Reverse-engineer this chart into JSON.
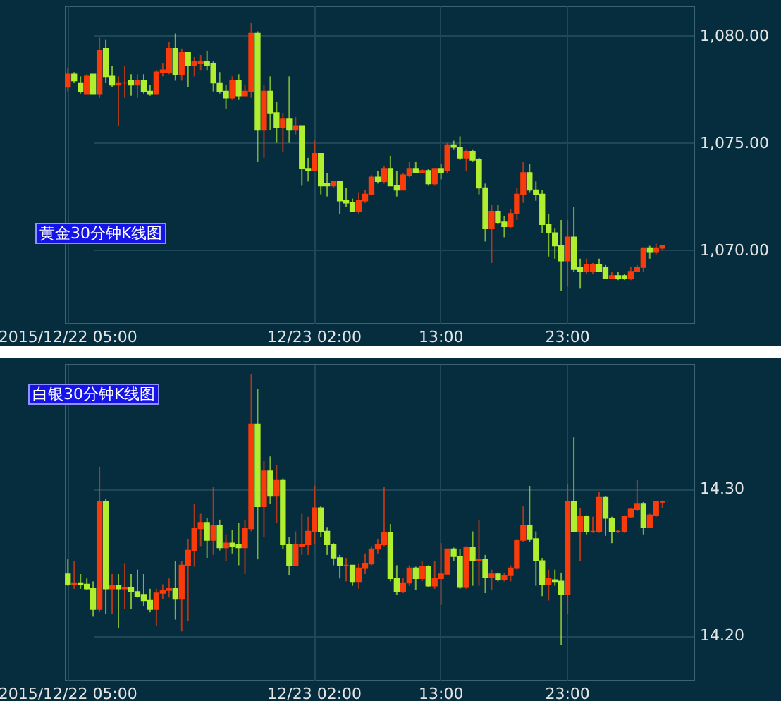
{
  "chart_data": [
    {
      "type": "candlestick",
      "title": "黄金30分钟K线图",
      "categories": [
        "2015/12/22 05:00",
        null,
        null,
        null,
        null,
        null,
        null,
        null,
        null,
        null,
        null,
        null,
        null,
        null,
        null,
        null,
        null,
        null,
        null,
        null,
        null,
        null,
        null,
        null,
        null,
        null,
        null,
        null,
        null,
        null,
        null,
        null,
        null,
        null,
        null,
        null,
        null,
        null,
        null,
        "12/23 02:00",
        null,
        null,
        null,
        null,
        null,
        null,
        null,
        null,
        null,
        null,
        null,
        null,
        null,
        null,
        null,
        null,
        null,
        null,
        null,
        "13:00",
        null,
        null,
        null,
        null,
        null,
        null,
        null,
        null,
        null,
        null,
        null,
        null,
        null,
        null,
        null,
        null,
        null,
        null,
        null,
        "23:00",
        null,
        null,
        null,
        null,
        null,
        null,
        null,
        null,
        null,
        null,
        null,
        null,
        null,
        null,
        null
      ],
      "ohlc": [
        [
          1077.6,
          1078.5,
          1077.4,
          1078.2
        ],
        [
          1078.2,
          1078.3,
          1077.8,
          1077.9
        ],
        [
          1077.8,
          1078.1,
          1077.3,
          1077.4
        ],
        [
          1077.3,
          1078.2,
          1077.3,
          1078.1
        ],
        [
          1078.2,
          1078.2,
          1077.3,
          1077.3
        ],
        [
          1077.3,
          1079.9,
          1077.1,
          1079.3
        ],
        [
          1079.4,
          1079.8,
          1077.8,
          1078.1
        ],
        [
          1078.1,
          1078.6,
          1077.6,
          1077.7
        ],
        [
          1077.7,
          1078.1,
          1075.8,
          1077.8
        ],
        [
          1077.8,
          1078.6,
          1077.1,
          1077.8
        ],
        [
          1077.9,
          1078.2,
          1077.2,
          1077.7
        ],
        [
          1077.7,
          1078.2,
          1077.1,
          1077.9
        ],
        [
          1077.9,
          1078.2,
          1077.3,
          1077.4
        ],
        [
          1077.4,
          1077.7,
          1077.2,
          1077.3
        ],
        [
          1077.3,
          1078.4,
          1077.3,
          1078.3
        ],
        [
          1078.3,
          1078.7,
          1078.1,
          1078.4
        ],
        [
          1078.3,
          1079.7,
          1078.2,
          1079.4
        ],
        [
          1079.4,
          1080.1,
          1077.9,
          1078.2
        ],
        [
          1078.2,
          1079.4,
          1077.9,
          1079.2
        ],
        [
          1079.2,
          1079.2,
          1077.6,
          1078.6
        ],
        [
          1078.6,
          1079.0,
          1078.1,
          1078.8
        ],
        [
          1078.7,
          1079.1,
          1078.4,
          1078.8
        ],
        [
          1078.8,
          1079.3,
          1078.4,
          1078.6
        ],
        [
          1078.7,
          1078.8,
          1077.4,
          1077.8
        ],
        [
          1077.8,
          1078.3,
          1077.3,
          1077.4
        ],
        [
          1077.4,
          1077.7,
          1076.6,
          1077.1
        ],
        [
          1077.1,
          1078.1,
          1077.0,
          1077.9
        ],
        [
          1077.9,
          1078.2,
          1077.0,
          1077.2
        ],
        [
          1077.2,
          1077.7,
          1077.2,
          1077.4
        ],
        [
          1077.4,
          1080.6,
          1077.1,
          1080.1
        ],
        [
          1080.1,
          1080.2,
          1074.1,
          1075.6
        ],
        [
          1075.6,
          1077.7,
          1074.3,
          1077.4
        ],
        [
          1077.4,
          1078.1,
          1075.6,
          1076.4
        ],
        [
          1076.4,
          1076.9,
          1075.0,
          1075.7
        ],
        [
          1075.7,
          1076.4,
          1074.6,
          1076.1
        ],
        [
          1076.1,
          1078.1,
          1075.0,
          1075.6
        ],
        [
          1075.6,
          1076.2,
          1075.4,
          1075.8
        ],
        [
          1075.8,
          1075.8,
          1073.0,
          1073.8
        ],
        [
          1073.8,
          1074.3,
          1073.2,
          1073.7
        ],
        [
          1073.7,
          1075.1,
          1073.7,
          1074.5
        ],
        [
          1074.5,
          1074.5,
          1072.6,
          1073.0
        ],
        [
          1073.1,
          1073.6,
          1072.5,
          1073.0
        ],
        [
          1073.0,
          1073.2,
          1072.9,
          1073.2
        ],
        [
          1073.2,
          1073.2,
          1071.7,
          1072.3
        ],
        [
          1072.3,
          1072.9,
          1072.0,
          1072.2
        ],
        [
          1072.2,
          1072.4,
          1071.8,
          1071.8
        ],
        [
          1071.8,
          1072.7,
          1071.7,
          1072.3
        ],
        [
          1072.3,
          1072.8,
          1072.2,
          1072.6
        ],
        [
          1072.6,
          1073.5,
          1072.6,
          1073.4
        ],
        [
          1073.4,
          1073.7,
          1073.1,
          1073.2
        ],
        [
          1073.2,
          1073.9,
          1073.1,
          1073.8
        ],
        [
          1073.8,
          1074.4,
          1073.0,
          1073.0
        ],
        [
          1073.0,
          1073.7,
          1072.5,
          1072.8
        ],
        [
          1072.8,
          1073.6,
          1072.8,
          1073.5
        ],
        [
          1073.5,
          1074.1,
          1073.4,
          1073.8
        ],
        [
          1073.8,
          1074.1,
          1073.6,
          1073.6
        ],
        [
          1073.6,
          1073.8,
          1073.6,
          1073.7
        ],
        [
          1073.7,
          1073.8,
          1073.0,
          1073.1
        ],
        [
          1073.1,
          1073.8,
          1073.0,
          1073.8
        ],
        [
          1073.8,
          1074.0,
          1073.3,
          1073.6
        ],
        [
          1073.7,
          1075.0,
          1073.6,
          1074.9
        ],
        [
          1074.9,
          1075.1,
          1074.7,
          1074.8
        ],
        [
          1074.8,
          1075.3,
          1074.2,
          1074.3
        ],
        [
          1074.3,
          1074.7,
          1073.7,
          1074.6
        ],
        [
          1074.6,
          1074.7,
          1074.1,
          1074.2
        ],
        [
          1074.2,
          1074.3,
          1072.6,
          1072.9
        ],
        [
          1072.9,
          1073.1,
          1070.4,
          1071.0
        ],
        [
          1071.0,
          1072.1,
          1069.4,
          1071.8
        ],
        [
          1071.8,
          1072.1,
          1071.2,
          1071.3
        ],
        [
          1071.3,
          1071.6,
          1070.6,
          1071.1
        ],
        [
          1071.1,
          1071.9,
          1071.0,
          1071.7
        ],
        [
          1071.7,
          1072.9,
          1071.4,
          1072.6
        ],
        [
          1072.6,
          1074.1,
          1072.2,
          1073.6
        ],
        [
          1073.6,
          1074.0,
          1072.7,
          1072.8
        ],
        [
          1072.8,
          1073.2,
          1072.3,
          1072.6
        ],
        [
          1072.6,
          1072.8,
          1070.8,
          1071.2
        ],
        [
          1071.2,
          1071.7,
          1069.7,
          1070.8
        ],
        [
          1070.8,
          1071.0,
          1069.6,
          1070.2
        ],
        [
          1070.2,
          1071.4,
          1068.1,
          1069.5
        ],
        [
          1069.5,
          1071.4,
          1068.3,
          1070.6
        ],
        [
          1070.6,
          1072.0,
          1069.0,
          1069.1
        ],
        [
          1069.2,
          1069.6,
          1068.2,
          1069.0
        ],
        [
          1069.0,
          1069.6,
          1068.9,
          1069.3
        ],
        [
          1069.0,
          1069.4,
          1068.9,
          1069.3
        ],
        [
          1069.3,
          1069.6,
          1069.0,
          1069.0
        ],
        [
          1069.2,
          1069.3,
          1068.7,
          1068.7
        ],
        [
          1068.7,
          1069.0,
          1068.7,
          1068.8
        ],
        [
          1068.8,
          1069.0,
          1068.6,
          1068.7
        ],
        [
          1068.8,
          1068.9,
          1068.6,
          1068.7
        ],
        [
          1068.7,
          1069.2,
          1068.6,
          1069.0
        ],
        [
          1069.0,
          1069.3,
          1069.0,
          1069.2
        ],
        [
          1069.2,
          1070.1,
          1069.0,
          1070.1
        ],
        [
          1070.1,
          1070.2,
          1069.6,
          1069.9
        ],
        [
          1069.9,
          1070.3,
          1069.8,
          1070.1
        ],
        [
          1070.1,
          1070.2,
          1070.0,
          1070.2
        ]
      ],
      "colors": [
        "#f83c0c",
        "#b0ee30",
        "#b0ee30",
        "#f83c0c",
        "#b0ee30",
        "#f83c0c",
        "#b0ee30",
        "#b0ee30",
        "#f83c0c",
        "#f83c0c",
        "#b0ee30",
        "#f83c0c",
        "#b0ee30",
        "#b0ee30",
        "#f83c0c",
        "#f83c0c",
        "#f83c0c",
        "#b0ee30",
        "#f83c0c",
        "#b0ee30",
        "#f83c0c",
        "#f83c0c",
        "#b0ee30",
        "#b0ee30",
        "#b0ee30",
        "#b0ee30",
        "#f83c0c",
        "#b0ee30",
        "#f83c0c",
        "#f83c0c",
        "#b0ee30",
        "#f83c0c",
        "#b0ee30",
        "#b0ee30",
        "#f83c0c",
        "#b0ee30",
        "#f83c0c",
        "#b0ee30",
        "#b0ee30",
        "#f83c0c",
        "#b0ee30",
        "#b0ee30",
        "#f83c0c",
        "#b0ee30",
        "#b0ee30",
        "#b0ee30",
        "#f83c0c",
        "#f83c0c",
        "#f83c0c",
        "#b0ee30",
        "#f83c0c",
        "#b0ee30",
        "#b0ee30",
        "#f83c0c",
        "#f83c0c",
        "#b0ee30",
        "#f83c0c",
        "#b0ee30",
        "#f83c0c",
        "#b0ee30",
        "#f83c0c",
        "#b0ee30",
        "#b0ee30",
        "#f83c0c",
        "#b0ee30",
        "#b0ee30",
        "#b0ee30",
        "#f83c0c",
        "#b0ee30",
        "#b0ee30",
        "#f83c0c",
        "#f83c0c",
        "#f83c0c",
        "#b0ee30",
        "#b0ee30",
        "#b0ee30",
        "#b0ee30",
        "#b0ee30",
        "#b0ee30",
        "#f83c0c",
        "#b0ee30",
        "#b0ee30",
        "#f83c0c",
        "#f83c0c",
        "#b0ee30",
        "#b0ee30",
        "#f83c0c",
        "#b0ee30",
        "#b0ee30",
        "#f83c0c",
        "#f83c0c",
        "#f83c0c",
        "#b0ee30",
        "#f83c0c",
        "#f83c0c"
      ],
      "ylim": [
        1066.6,
        1081.4
      ],
      "yticks": [
        {
          "value": 1070,
          "label": "1,070.00"
        },
        {
          "value": 1075,
          "label": "1,075.00"
        },
        {
          "value": 1080,
          "label": "1,080.00"
        }
      ],
      "grid": true
    },
    {
      "type": "candlestick",
      "title": "白银30分钟K线图",
      "categories": [
        "2015/12/22 05:00",
        null,
        null,
        null,
        null,
        null,
        null,
        null,
        null,
        null,
        null,
        null,
        null,
        null,
        null,
        null,
        null,
        null,
        null,
        null,
        null,
        null,
        null,
        null,
        null,
        null,
        null,
        null,
        null,
        null,
        null,
        null,
        null,
        null,
        null,
        null,
        null,
        null,
        null,
        "12/23 02:00",
        null,
        null,
        null,
        null,
        null,
        null,
        null,
        null,
        null,
        null,
        null,
        null,
        null,
        null,
        null,
        null,
        null,
        null,
        null,
        "13:00",
        null,
        null,
        null,
        null,
        null,
        null,
        null,
        null,
        null,
        null,
        null,
        null,
        null,
        null,
        null,
        null,
        null,
        null,
        null,
        "23:00",
        null,
        null,
        null,
        null,
        null,
        null,
        null,
        null,
        null,
        null,
        null,
        null,
        null,
        null,
        null
      ],
      "ohlc": [
        [
          14.242,
          14.252,
          14.234,
          14.235
        ],
        [
          14.235,
          14.251,
          14.232,
          14.236
        ],
        [
          14.236,
          14.242,
          14.232,
          14.235
        ],
        [
          14.235,
          14.239,
          14.231,
          14.232
        ],
        [
          14.232,
          14.237,
          14.213,
          14.218
        ],
        [
          14.218,
          14.315,
          14.216,
          14.291
        ],
        [
          14.291,
          14.293,
          14.215,
          14.232
        ],
        [
          14.232,
          14.242,
          14.215,
          14.234
        ],
        [
          14.234,
          14.242,
          14.205,
          14.232
        ],
        [
          14.232,
          14.249,
          14.218,
          14.233
        ],
        [
          14.233,
          14.242,
          14.218,
          14.23
        ],
        [
          14.23,
          14.245,
          14.226,
          14.227
        ],
        [
          14.228,
          14.242,
          14.22,
          14.224
        ],
        [
          14.224,
          14.232,
          14.216,
          14.218
        ],
        [
          14.218,
          14.232,
          14.207,
          14.229
        ],
        [
          14.229,
          14.235,
          14.225,
          14.231
        ],
        [
          14.231,
          14.239,
          14.226,
          14.232
        ],
        [
          14.232,
          14.251,
          14.211,
          14.225
        ],
        [
          14.225,
          14.251,
          14.203,
          14.248
        ],
        [
          14.248,
          14.266,
          14.21,
          14.258
        ],
        [
          14.258,
          14.29,
          14.247,
          14.273
        ],
        [
          14.273,
          14.283,
          14.261,
          14.277
        ],
        [
          14.277,
          14.28,
          14.253,
          14.265
        ],
        [
          14.265,
          14.301,
          14.255,
          14.275
        ],
        [
          14.275,
          14.279,
          14.258,
          14.26
        ],
        [
          14.26,
          14.269,
          14.251,
          14.263
        ],
        [
          14.263,
          14.272,
          14.256,
          14.261
        ],
        [
          14.262,
          14.277,
          14.248,
          14.26
        ],
        [
          14.26,
          14.279,
          14.242,
          14.273
        ],
        [
          14.273,
          14.378,
          14.271,
          14.344
        ],
        [
          14.344,
          14.368,
          14.252,
          14.288
        ],
        [
          14.288,
          14.319,
          14.267,
          14.312
        ],
        [
          14.312,
          14.322,
          14.29,
          14.295
        ],
        [
          14.295,
          14.316,
          14.277,
          14.306
        ],
        [
          14.306,
          14.307,
          14.259,
          14.262
        ],
        [
          14.262,
          14.267,
          14.241,
          14.248
        ],
        [
          14.248,
          14.271,
          14.248,
          14.262
        ],
        [
          14.261,
          14.283,
          14.255,
          14.262
        ],
        [
          14.262,
          14.281,
          14.255,
          14.271
        ],
        [
          14.271,
          14.302,
          14.262,
          14.287
        ],
        [
          14.287,
          14.288,
          14.267,
          14.271
        ],
        [
          14.271,
          14.274,
          14.255,
          14.262
        ],
        [
          14.262,
          14.263,
          14.248,
          14.253
        ],
        [
          14.253,
          14.255,
          14.239,
          14.248
        ],
        [
          14.248,
          14.253,
          14.237,
          14.248
        ],
        [
          14.248,
          14.248,
          14.234,
          14.237
        ],
        [
          14.237,
          14.249,
          14.232,
          14.246
        ],
        [
          14.246,
          14.256,
          14.242,
          14.249
        ],
        [
          14.249,
          14.261,
          14.248,
          14.259
        ],
        [
          14.259,
          14.266,
          14.256,
          14.262
        ],
        [
          14.262,
          14.301,
          14.261,
          14.27
        ],
        [
          14.27,
          14.276,
          14.237,
          14.239
        ],
        [
          14.239,
          14.248,
          14.228,
          14.23
        ],
        [
          14.23,
          14.239,
          14.229,
          14.236
        ],
        [
          14.236,
          14.248,
          14.234,
          14.246
        ],
        [
          14.246,
          14.247,
          14.231,
          14.239
        ],
        [
          14.239,
          14.251,
          14.237,
          14.247
        ],
        [
          14.247,
          14.248,
          14.233,
          14.234
        ],
        [
          14.234,
          14.251,
          14.232,
          14.239
        ],
        [
          14.239,
          14.263,
          14.221,
          14.242
        ],
        [
          14.242,
          14.259,
          14.242,
          14.259
        ],
        [
          14.259,
          14.26,
          14.251,
          14.254
        ],
        [
          14.254,
          14.259,
          14.232,
          14.233
        ],
        [
          14.233,
          14.261,
          14.232,
          14.26
        ],
        [
          14.26,
          14.271,
          14.234,
          14.251
        ],
        [
          14.251,
          14.279,
          14.234,
          14.252
        ],
        [
          14.252,
          14.255,
          14.229,
          14.24
        ],
        [
          14.24,
          14.245,
          14.231,
          14.242
        ],
        [
          14.242,
          14.243,
          14.237,
          14.238
        ],
        [
          14.238,
          14.243,
          14.237,
          14.241
        ],
        [
          14.241,
          14.248,
          14.237,
          14.246
        ],
        [
          14.246,
          14.266,
          14.245,
          14.265
        ],
        [
          14.265,
          14.288,
          14.264,
          14.275
        ],
        [
          14.275,
          14.302,
          14.264,
          14.266
        ],
        [
          14.266,
          14.271,
          14.234,
          14.251
        ],
        [
          14.251,
          14.253,
          14.227,
          14.235
        ],
        [
          14.235,
          14.245,
          14.224,
          14.239
        ],
        [
          14.238,
          14.245,
          14.234,
          14.237
        ],
        [
          14.237,
          14.243,
          14.194,
          14.228
        ],
        [
          14.228,
          14.303,
          14.215,
          14.291
        ],
        [
          14.291,
          14.335,
          14.271,
          14.271
        ],
        [
          14.271,
          14.287,
          14.251,
          14.281
        ],
        [
          14.281,
          14.282,
          14.269,
          14.271
        ],
        [
          14.271,
          14.281,
          14.27,
          14.271
        ],
        [
          14.271,
          14.298,
          14.27,
          14.294
        ],
        [
          14.294,
          14.295,
          14.268,
          14.28
        ],
        [
          14.28,
          14.281,
          14.263,
          14.271
        ],
        [
          14.271,
          14.272,
          14.27,
          14.271
        ],
        [
          14.271,
          14.282,
          14.27,
          14.281
        ],
        [
          14.281,
          14.287,
          14.28,
          14.286
        ],
        [
          14.286,
          14.306,
          14.285,
          14.29
        ],
        [
          14.29,
          14.291,
          14.269,
          14.274
        ],
        [
          14.274,
          14.283,
          14.274,
          14.282
        ],
        [
          14.282,
          14.292,
          14.281,
          14.291
        ],
        [
          14.291,
          14.292,
          14.287,
          14.291
        ]
      ],
      "colors": [
        "#b0ee30",
        "#f83c0c",
        "#b0ee30",
        "#b0ee30",
        "#b0ee30",
        "#f83c0c",
        "#b0ee30",
        "#f83c0c",
        "#b0ee30",
        "#f83c0c",
        "#b0ee30",
        "#b0ee30",
        "#b0ee30",
        "#b0ee30",
        "#f83c0c",
        "#f83c0c",
        "#f83c0c",
        "#b0ee30",
        "#f83c0c",
        "#f83c0c",
        "#f83c0c",
        "#f83c0c",
        "#b0ee30",
        "#f83c0c",
        "#b0ee30",
        "#f83c0c",
        "#b0ee30",
        "#b0ee30",
        "#f83c0c",
        "#f83c0c",
        "#b0ee30",
        "#f83c0c",
        "#b0ee30",
        "#f83c0c",
        "#b0ee30",
        "#b0ee30",
        "#f83c0c",
        "#f83c0c",
        "#f83c0c",
        "#f83c0c",
        "#b0ee30",
        "#b0ee30",
        "#b0ee30",
        "#b0ee30",
        "#f83c0c",
        "#b0ee30",
        "#f83c0c",
        "#f83c0c",
        "#f83c0c",
        "#f83c0c",
        "#f83c0c",
        "#b0ee30",
        "#b0ee30",
        "#f83c0c",
        "#f83c0c",
        "#b0ee30",
        "#f83c0c",
        "#b0ee30",
        "#f83c0c",
        "#f83c0c",
        "#f83c0c",
        "#b0ee30",
        "#b0ee30",
        "#f83c0c",
        "#b0ee30",
        "#f83c0c",
        "#b0ee30",
        "#f83c0c",
        "#b0ee30",
        "#f83c0c",
        "#f83c0c",
        "#f83c0c",
        "#f83c0c",
        "#b0ee30",
        "#b0ee30",
        "#b0ee30",
        "#f83c0c",
        "#b0ee30",
        "#b0ee30",
        "#f83c0c",
        "#b0ee30",
        "#f83c0c",
        "#b0ee30",
        "#f83c0c",
        "#f83c0c",
        "#b0ee30",
        "#b0ee30",
        "#f83c0c",
        "#f83c0c",
        "#f83c0c",
        "#f83c0c",
        "#b0ee30",
        "#f83c0c",
        "#f83c0c",
        "#f83c0c"
      ],
      "ylim": [
        14.17,
        14.385
      ],
      "yticks": [
        {
          "value": 14.2,
          "label": "14.20"
        },
        {
          "value": 14.3,
          "label": "14.30"
        }
      ],
      "grid": true
    }
  ]
}
